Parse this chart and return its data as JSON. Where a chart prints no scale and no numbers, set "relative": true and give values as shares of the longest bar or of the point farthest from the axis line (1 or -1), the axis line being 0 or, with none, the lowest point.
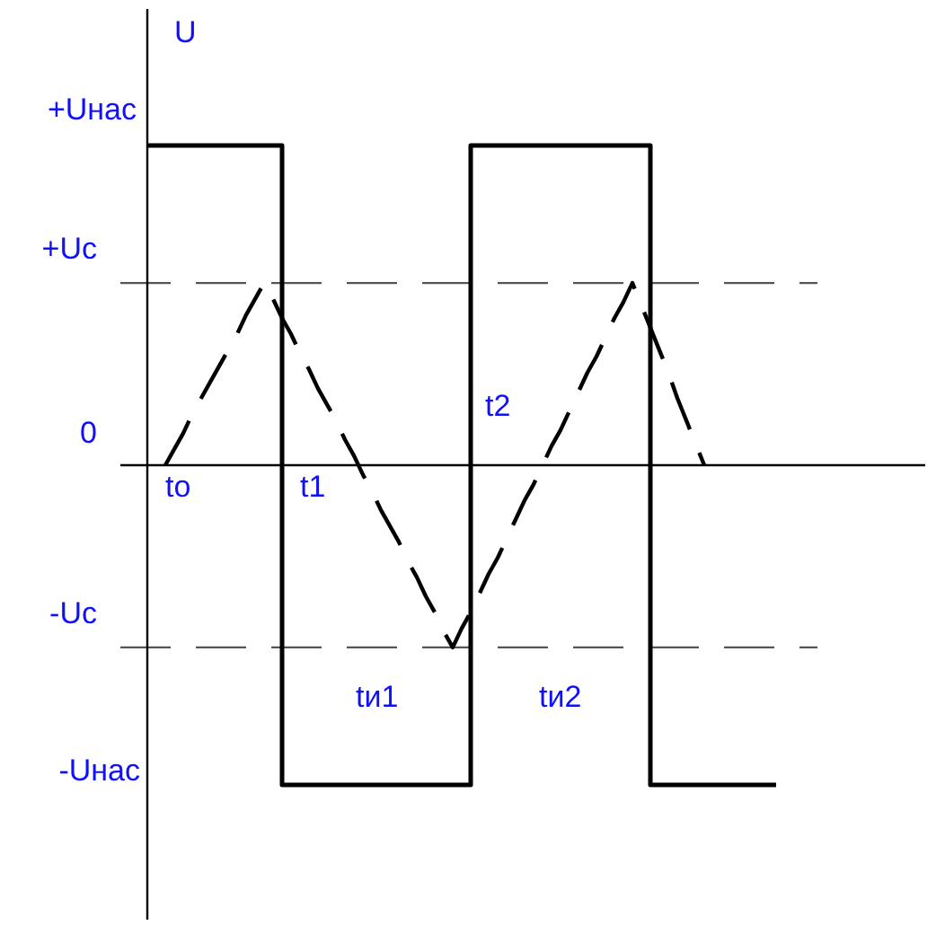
{
  "chart_data": {
    "type": "line",
    "relative": true,
    "ylabel": "U",
    "categories": [
      null,
      null,
      null,
      null,
      null,
      null,
      null,
      null,
      null,
      null,
      null,
      null,
      null,
      null,
      null,
      null,
      null,
      null,
      null,
      null,
      null,
      null,
      null,
      null,
      null,
      null,
      null,
      null,
      null,
      null,
      null,
      null,
      null,
      null,
      null,
      null,
      null,
      null,
      null,
      null,
      null,
      null,
      null,
      null,
      null,
      null,
      null,
      null,
      null,
      null,
      null,
      null,
      null,
      null,
      null,
      null,
      null,
      null,
      null,
      null,
      null,
      null,
      null,
      null,
      null,
      null,
      null,
      null,
      null,
      null,
      null
    ],
    "series": [
      {
        "type": "step",
        "color": "#000000",
        "line_style": "solid",
        "values": [
          1,
          1,
          1,
          1,
          1,
          1,
          1,
          1,
          1,
          1,
          1,
          1,
          1,
          1,
          1,
          -1,
          -1,
          -1,
          -1,
          -1,
          -1,
          -1,
          -1,
          -1,
          -1,
          -1,
          -1,
          -1,
          -1,
          -1,
          -1,
          -1,
          -1,
          -1,
          -1,
          -1,
          1,
          1,
          1,
          1,
          1,
          1,
          1,
          1,
          1,
          1,
          1,
          1,
          1,
          1,
          1,
          1,
          1,
          1,
          1,
          1,
          -1,
          -1,
          -1,
          -1,
          -1,
          -1,
          -1,
          -1,
          -1,
          -1,
          -1,
          -1,
          -1,
          -1,
          -1
        ]
      },
      {
        "color": "#000000",
        "line_style": "dashed",
        "values": [
          null,
          null,
          0,
          0.05,
          0.1,
          0.16,
          0.21,
          0.26,
          0.31,
          0.36,
          0.41,
          0.47,
          0.52,
          0.57,
          0.52,
          0.46,
          0.41,
          0.35,
          0.3,
          0.24,
          0.19,
          0.14,
          0.08,
          0.03,
          -0.03,
          -0.08,
          -0.14,
          -0.19,
          -0.24,
          -0.3,
          -0.35,
          -0.41,
          -0.46,
          -0.52,
          -0.57,
          -0.51,
          -0.46,
          -0.4,
          -0.34,
          -0.29,
          -0.23,
          -0.17,
          -0.11,
          -0.06,
          0,
          0.06,
          0.11,
          0.17,
          0.23,
          0.29,
          0.34,
          0.4,
          0.46,
          0.51,
          0.57,
          0.5,
          0.43,
          0.36,
          0.29,
          0.21,
          0.14,
          0.07,
          0,
          null,
          null,
          null,
          null,
          null,
          null,
          null,
          null
        ]
      }
    ],
    "ref_lines": [
      {
        "axis": "y",
        "value": 0.57,
        "label": "+Uc",
        "color": "#555555",
        "line_style": "dashed"
      },
      {
        "axis": "y",
        "value": -0.57,
        "label": "-Uc",
        "color": "#555555",
        "line_style": "dashed"
      }
    ],
    "annotations": [
      "+Uнас",
      "0",
      "-Uнас",
      "to",
      "t1",
      "t2",
      "tи1",
      "tи2"
    ]
  }
}
